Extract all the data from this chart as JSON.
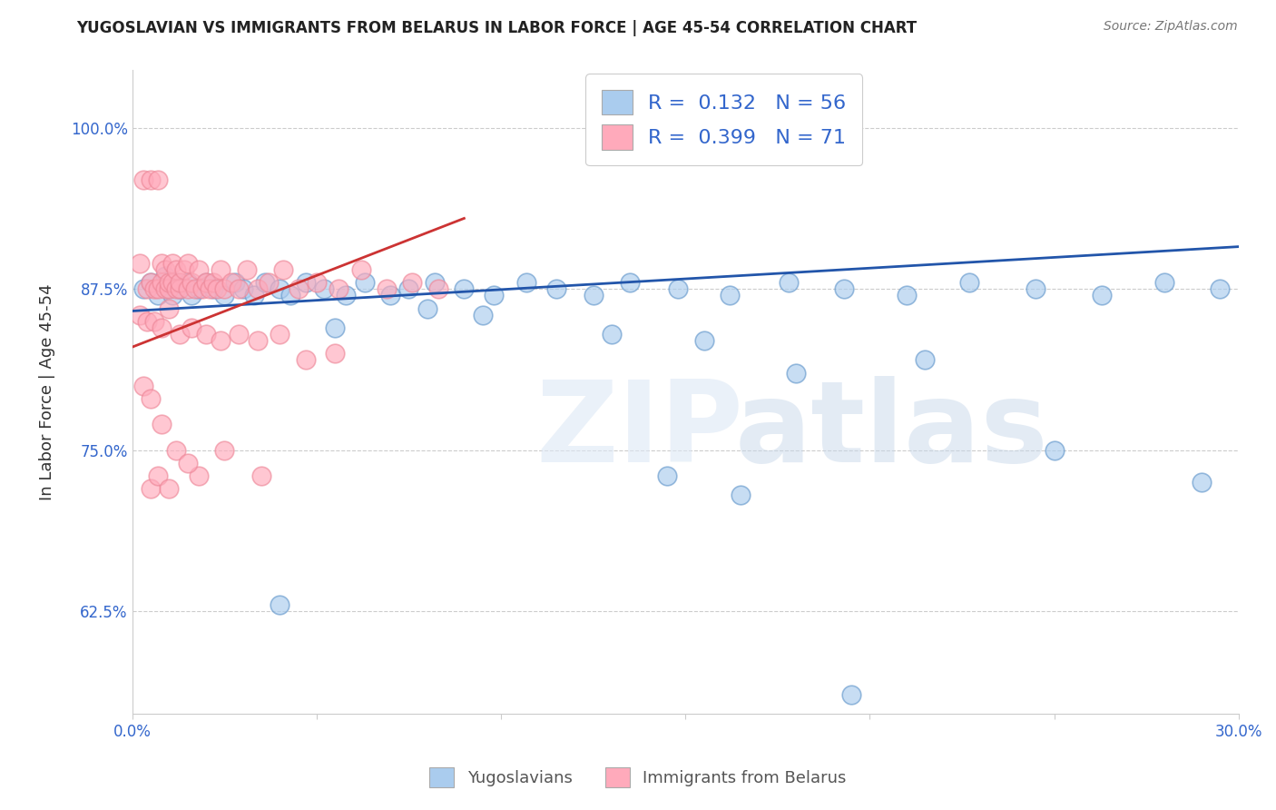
{
  "title": "YUGOSLAVIAN VS IMMIGRANTS FROM BELARUS IN LABOR FORCE | AGE 45-54 CORRELATION CHART",
  "source": "Source: ZipAtlas.com",
  "ylabel": "In Labor Force | Age 45-54",
  "xmin": 0.0,
  "xmax": 0.3,
  "ymin": 0.545,
  "ymax": 1.045,
  "yticks": [
    0.625,
    0.75,
    0.875,
    1.0
  ],
  "ytick_labels": [
    "62.5%",
    "75.0%",
    "87.5%",
    "100.0%"
  ],
  "xticks": [
    0.0,
    0.05,
    0.1,
    0.15,
    0.2,
    0.25,
    0.3
  ],
  "xtick_labels": [
    "0.0%",
    "",
    "",
    "",
    "",
    "",
    "30.0%"
  ],
  "blue_color": "#aaccee",
  "pink_color": "#ffaabb",
  "blue_edge_color": "#6699cc",
  "pink_edge_color": "#ee8899",
  "blue_line_color": "#2255aa",
  "pink_line_color": "#cc3333",
  "label_color": "#3366cc",
  "title_color": "#222222",
  "legend_label1": "Yugoslavians",
  "legend_label2": "Immigrants from Belarus",
  "blue_trend_x": [
    0.0,
    0.3
  ],
  "blue_trend_y": [
    0.858,
    0.908
  ],
  "pink_trend_x": [
    0.0,
    0.09
  ],
  "pink_trend_y": [
    0.83,
    0.93
  ],
  "blue_x": [
    0.003,
    0.005,
    0.007,
    0.009,
    0.01,
    0.011,
    0.012,
    0.013,
    0.015,
    0.016,
    0.018,
    0.02,
    0.022,
    0.025,
    0.028,
    0.03,
    0.033,
    0.036,
    0.04,
    0.043,
    0.047,
    0.052,
    0.058,
    0.063,
    0.07,
    0.075,
    0.082,
    0.09,
    0.098,
    0.107,
    0.115,
    0.125,
    0.135,
    0.148,
    0.162,
    0.178,
    0.193,
    0.21,
    0.227,
    0.245,
    0.263,
    0.28,
    0.295,
    0.18,
    0.215,
    0.25,
    0.13,
    0.155,
    0.095,
    0.055,
    0.145,
    0.08,
    0.165,
    0.29,
    0.04,
    0.195
  ],
  "blue_y": [
    0.875,
    0.88,
    0.87,
    0.885,
    0.875,
    0.87,
    0.88,
    0.875,
    0.88,
    0.87,
    0.875,
    0.88,
    0.875,
    0.87,
    0.88,
    0.875,
    0.87,
    0.88,
    0.875,
    0.87,
    0.88,
    0.875,
    0.87,
    0.88,
    0.87,
    0.875,
    0.88,
    0.875,
    0.87,
    0.88,
    0.875,
    0.87,
    0.88,
    0.875,
    0.87,
    0.88,
    0.875,
    0.87,
    0.88,
    0.875,
    0.87,
    0.88,
    0.875,
    0.81,
    0.82,
    0.75,
    0.84,
    0.835,
    0.855,
    0.845,
    0.73,
    0.86,
    0.715,
    0.725,
    0.63,
    0.56
  ],
  "pink_x": [
    0.002,
    0.003,
    0.004,
    0.005,
    0.005,
    0.006,
    0.007,
    0.007,
    0.008,
    0.008,
    0.009,
    0.009,
    0.01,
    0.01,
    0.011,
    0.011,
    0.012,
    0.012,
    0.013,
    0.013,
    0.014,
    0.015,
    0.015,
    0.016,
    0.017,
    0.018,
    0.019,
    0.02,
    0.021,
    0.022,
    0.023,
    0.024,
    0.025,
    0.027,
    0.029,
    0.031,
    0.034,
    0.037,
    0.041,
    0.045,
    0.05,
    0.056,
    0.062,
    0.069,
    0.076,
    0.083,
    0.002,
    0.004,
    0.006,
    0.008,
    0.01,
    0.013,
    0.016,
    0.02,
    0.024,
    0.029,
    0.034,
    0.04,
    0.047,
    0.055,
    0.003,
    0.005,
    0.008,
    0.012,
    0.018,
    0.025,
    0.035,
    0.005,
    0.007,
    0.01,
    0.015
  ],
  "pink_y": [
    0.895,
    0.96,
    0.875,
    0.96,
    0.88,
    0.875,
    0.96,
    0.875,
    0.895,
    0.88,
    0.875,
    0.89,
    0.875,
    0.88,
    0.895,
    0.88,
    0.875,
    0.89,
    0.875,
    0.88,
    0.89,
    0.875,
    0.895,
    0.88,
    0.875,
    0.89,
    0.875,
    0.88,
    0.875,
    0.88,
    0.875,
    0.89,
    0.875,
    0.88,
    0.875,
    0.89,
    0.875,
    0.88,
    0.89,
    0.875,
    0.88,
    0.875,
    0.89,
    0.875,
    0.88,
    0.875,
    0.855,
    0.85,
    0.85,
    0.845,
    0.86,
    0.84,
    0.845,
    0.84,
    0.835,
    0.84,
    0.835,
    0.84,
    0.82,
    0.825,
    0.8,
    0.79,
    0.77,
    0.75,
    0.73,
    0.75,
    0.73,
    0.72,
    0.73,
    0.72,
    0.74
  ]
}
